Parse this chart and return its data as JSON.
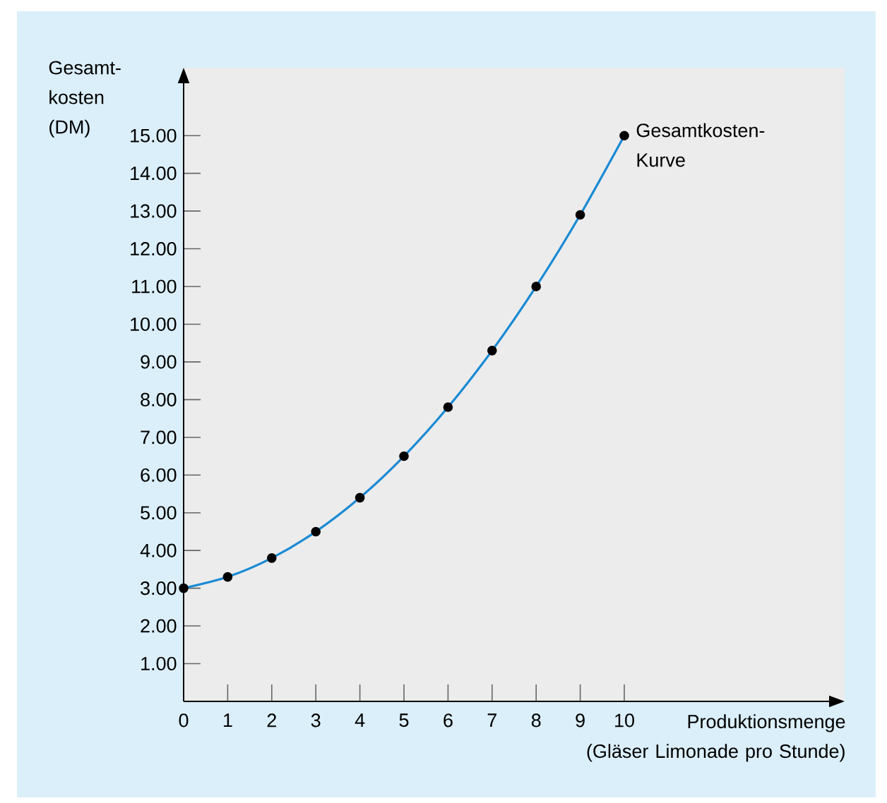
{
  "chart_data": {
    "type": "line",
    "xlabel": "Produktionsmenge (Gläser Limonade pro Stunde)",
    "ylabel": "Gesamt-kosten (DM)",
    "x": [
      0,
      1,
      2,
      3,
      4,
      5,
      6,
      7,
      8,
      9,
      10
    ],
    "series": [
      {
        "name": "Gesamtkosten-Kurve",
        "color": "#1a8ad4",
        "values": [
          3.0,
          3.3,
          3.8,
          4.5,
          5.4,
          6.5,
          7.8,
          9.3,
          11.0,
          12.9,
          15.0
        ]
      }
    ],
    "xlim": [
      0,
      15
    ],
    "ylim": [
      0,
      16.8
    ],
    "xticks": [
      0,
      1,
      2,
      3,
      4,
      5,
      6,
      7,
      8,
      9,
      10
    ],
    "yticks": [
      {
        "value": 1,
        "label": "1.00"
      },
      {
        "value": 2,
        "label": "2.00"
      },
      {
        "value": 3,
        "label": "3.00"
      },
      {
        "value": 4,
        "label": "4.00"
      },
      {
        "value": 5,
        "label": "5.00"
      },
      {
        "value": 6,
        "label": "6.00"
      },
      {
        "value": 7,
        "label": "7.00"
      },
      {
        "value": 8,
        "label": "8.00"
      },
      {
        "value": 9,
        "label": "9.00"
      },
      {
        "value": 10,
        "label": "10.00"
      },
      {
        "value": 11,
        "label": "11.00"
      },
      {
        "value": 12,
        "label": "12.00"
      },
      {
        "value": 13,
        "label": "13.00"
      },
      {
        "value": 14,
        "label": "14.00"
      },
      {
        "value": 15,
        "label": "15.00"
      }
    ],
    "marker": "circle",
    "line_style": "solid",
    "grid": false
  }
}
